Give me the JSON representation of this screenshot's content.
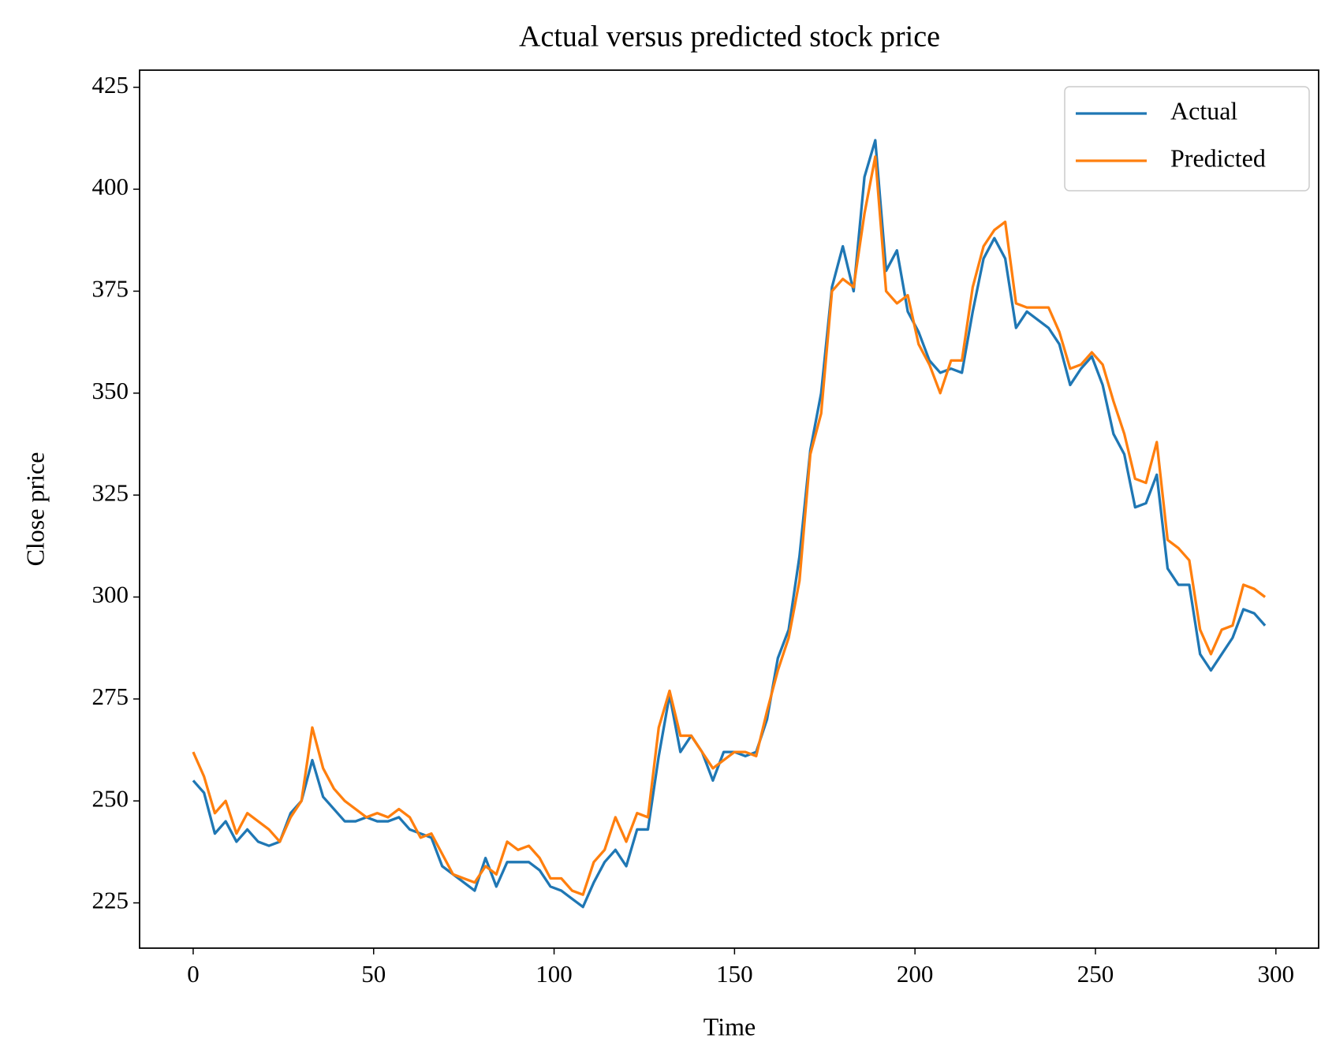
{
  "chart_data": {
    "type": "line",
    "title": "Actual versus predicted stock price",
    "xlabel": "Time",
    "ylabel": "Close price",
    "x": [
      0,
      3,
      6,
      9,
      12,
      15,
      18,
      21,
      24,
      27,
      30,
      33,
      36,
      39,
      42,
      45,
      48,
      51,
      54,
      57,
      60,
      63,
      66,
      69,
      72,
      75,
      78,
      81,
      84,
      87,
      90,
      93,
      96,
      99,
      102,
      105,
      108,
      111,
      114,
      117,
      120,
      123,
      126,
      129,
      132,
      135,
      138,
      141,
      144,
      147,
      150,
      153,
      156,
      159,
      162,
      165,
      168,
      171,
      174,
      177,
      180,
      183,
      186,
      189,
      192,
      195,
      198,
      201,
      204,
      207,
      210,
      213,
      216,
      219,
      222,
      225,
      228,
      231,
      234,
      237,
      240,
      243,
      246,
      249,
      252,
      255,
      258,
      261,
      264,
      267,
      270,
      273,
      276,
      279,
      282,
      285,
      288,
      291,
      294,
      297
    ],
    "series": [
      {
        "name": "Actual",
        "color": "#1f77b4",
        "values": [
          255,
          252,
          242,
          245,
          240,
          243,
          240,
          239,
          240,
          247,
          250,
          260,
          251,
          248,
          245,
          245,
          246,
          245,
          245,
          246,
          243,
          242,
          241,
          234,
          232,
          230,
          228,
          236,
          229,
          235,
          235,
          235,
          233,
          229,
          228,
          226,
          224,
          230,
          235,
          238,
          234,
          243,
          243,
          261,
          276,
          262,
          266,
          262,
          255,
          262,
          262,
          261,
          262,
          270,
          285,
          292,
          310,
          336,
          350,
          376,
          386,
          375,
          403,
          412,
          380,
          385,
          370,
          365,
          358,
          355,
          356,
          355,
          370,
          383,
          388,
          383,
          366,
          370,
          368,
          366,
          362,
          352,
          356,
          359,
          352,
          340,
          335,
          322,
          323,
          330,
          307,
          303,
          303,
          286,
          282,
          286,
          290,
          297,
          296,
          293
        ]
      },
      {
        "name": "Predicted",
        "color": "#ff7f0e",
        "values": [
          262,
          256,
          247,
          250,
          242,
          247,
          245,
          243,
          240,
          246,
          250,
          268,
          258,
          253,
          250,
          248,
          246,
          247,
          246,
          248,
          246,
          241,
          242,
          237,
          232,
          231,
          230,
          234,
          232,
          240,
          238,
          239,
          236,
          231,
          231,
          228,
          227,
          235,
          238,
          246,
          240,
          247,
          246,
          268,
          277,
          266,
          266,
          262,
          258,
          260,
          262,
          262,
          261,
          272,
          282,
          290,
          304,
          335,
          345,
          375,
          378,
          376,
          394,
          408,
          375,
          372,
          374,
          362,
          357,
          350,
          358,
          358,
          376,
          386,
          390,
          392,
          372,
          371,
          371,
          371,
          365,
          356,
          357,
          360,
          357,
          348,
          340,
          329,
          328,
          338,
          314,
          312,
          309,
          292,
          286,
          292,
          293,
          303,
          302,
          300
        ]
      }
    ],
    "xlim": [
      -14.85,
      311.85
    ],
    "xticks": [
      0,
      50,
      100,
      150,
      200,
      250,
      300
    ],
    "ylim": [
      213.9,
      429.2
    ],
    "yticks": [
      225,
      250,
      275,
      300,
      325,
      350,
      375,
      400,
      425
    ],
    "legend": "upper right"
  }
}
